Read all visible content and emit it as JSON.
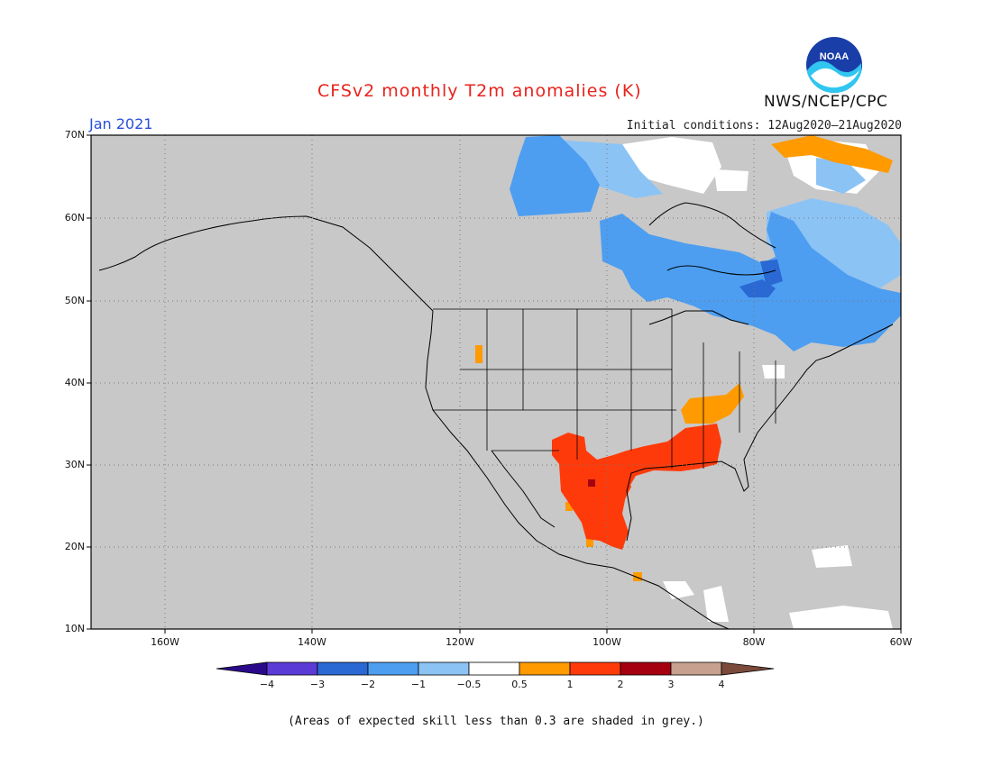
{
  "header": {
    "title": "CFSv2 monthly T2m anomalies (K)",
    "month": "Jan 2021",
    "initial_conditions": "Initial conditions: 12Aug2020–21Aug2020",
    "agency": "NWS/NCEP/CPC",
    "logo_text": "NOAA"
  },
  "map": {
    "lat_labels": [
      "70N",
      "60N",
      "50N",
      "40N",
      "30N",
      "20N",
      "10N"
    ],
    "lon_labels": [
      "160W",
      "140W",
      "120W",
      "100W",
      "80W",
      "60W"
    ],
    "background_color": "#c8c8c8",
    "shading_regions": [
      {
        "name": "canada-cool",
        "category": "-2 to -1",
        "color": "#4d9ef0"
      },
      {
        "name": "canada-slight-cool",
        "category": "-1 to -0.5",
        "color": "#8cc3f5"
      },
      {
        "name": "great-lakes-cold",
        "category": "-3 to -2",
        "color": "#2a68d4"
      },
      {
        "name": "south-us-mexico-warm",
        "category": "1 to 2",
        "color": "#ff3a0a"
      },
      {
        "name": "tennessee-valley-warm",
        "category": "0.5 to 1",
        "color": "#ff9a00"
      },
      {
        "name": "greenland-warm",
        "category": "0.5 to 1",
        "color": "#ff9a00"
      }
    ]
  },
  "colorbar": {
    "labels": [
      "−4",
      "−3",
      "−2",
      "−1",
      "−0.5",
      "0.5",
      "1",
      "2",
      "3",
      "4"
    ],
    "colors": [
      "#2b0a8a",
      "#5a3bd6",
      "#2a68d4",
      "#4d9ef0",
      "#8cc3f5",
      "#ffffff",
      "#ff9a00",
      "#ff3a0a",
      "#a5000f",
      "#c8a090",
      "#7a4a3a"
    ]
  },
  "footer": {
    "note": "(Areas of expected skill less than 0.3 are shaded in grey.)"
  }
}
